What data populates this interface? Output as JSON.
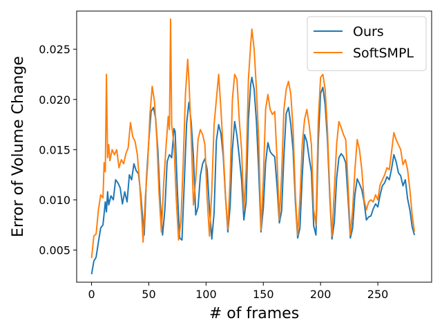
{
  "chart_data": {
    "type": "line",
    "xlabel": "# of frames",
    "ylabel": "Error of Volume Change",
    "xlim": [
      -13,
      297
    ],
    "ylim": [
      0.0018,
      0.0288
    ],
    "x_ticks": [
      0,
      50,
      100,
      150,
      200,
      250
    ],
    "x_tick_labels": [
      "0",
      "50",
      "100",
      "150",
      "200",
      "250"
    ],
    "y_ticks": [
      0.005,
      0.01,
      0.015,
      0.02,
      0.025
    ],
    "y_tick_labels": [
      "0.005",
      "0.010",
      "0.015",
      "0.020",
      "0.025"
    ],
    "grid": false,
    "legend_position": "top-right",
    "series": [
      {
        "name": "Ours",
        "color": "#1f77b4",
        "points": [
          [
            0,
            0.0026
          ],
          [
            2,
            0.0039
          ],
          [
            4,
            0.0043
          ],
          [
            6,
            0.0058
          ],
          [
            8,
            0.0072
          ],
          [
            10,
            0.0075
          ],
          [
            12,
            0.0098
          ],
          [
            13,
            0.0088
          ],
          [
            14,
            0.0108
          ],
          [
            15,
            0.0095
          ],
          [
            17,
            0.0104
          ],
          [
            19,
            0.01
          ],
          [
            21,
            0.012
          ],
          [
            23,
            0.0117
          ],
          [
            25,
            0.0112
          ],
          [
            27,
            0.0096
          ],
          [
            29,
            0.0108
          ],
          [
            31,
            0.0098
          ],
          [
            33,
            0.0125
          ],
          [
            35,
            0.012
          ],
          [
            37,
            0.0136
          ],
          [
            39,
            0.0129
          ],
          [
            41,
            0.0126
          ],
          [
            43,
            0.0105
          ],
          [
            45,
            0.0076
          ],
          [
            46,
            0.0065
          ],
          [
            48,
            0.0122
          ],
          [
            50,
            0.0159
          ],
          [
            52,
            0.0188
          ],
          [
            54,
            0.0192
          ],
          [
            56,
            0.0181
          ],
          [
            58,
            0.0148
          ],
          [
            60,
            0.0098
          ],
          [
            62,
            0.0065
          ],
          [
            64,
            0.009
          ],
          [
            66,
            0.0138
          ],
          [
            68,
            0.0145
          ],
          [
            70,
            0.0142
          ],
          [
            72,
            0.0171
          ],
          [
            73,
            0.0168
          ],
          [
            75,
            0.0108
          ],
          [
            77,
            0.0062
          ],
          [
            79,
            0.006
          ],
          [
            81,
            0.0118
          ],
          [
            83,
            0.0176
          ],
          [
            85,
            0.0197
          ],
          [
            87,
            0.0178
          ],
          [
            89,
            0.0143
          ],
          [
            91,
            0.0085
          ],
          [
            93,
            0.0093
          ],
          [
            95,
            0.0124
          ],
          [
            97,
            0.0136
          ],
          [
            99,
            0.0141
          ],
          [
            101,
            0.013
          ],
          [
            103,
            0.0091
          ],
          [
            105,
            0.0061
          ],
          [
            107,
            0.0087
          ],
          [
            109,
            0.0159
          ],
          [
            111,
            0.0175
          ],
          [
            113,
            0.0166
          ],
          [
            115,
            0.0144
          ],
          [
            117,
            0.0103
          ],
          [
            119,
            0.0068
          ],
          [
            121,
            0.0093
          ],
          [
            123,
            0.015
          ],
          [
            125,
            0.0178
          ],
          [
            127,
            0.0164
          ],
          [
            129,
            0.0143
          ],
          [
            131,
            0.012
          ],
          [
            133,
            0.008
          ],
          [
            135,
            0.0098
          ],
          [
            137,
            0.018
          ],
          [
            139,
            0.0215
          ],
          [
            140,
            0.0222
          ],
          [
            142,
            0.021
          ],
          [
            144,
            0.0178
          ],
          [
            146,
            0.0129
          ],
          [
            148,
            0.0068
          ],
          [
            150,
            0.0092
          ],
          [
            152,
            0.0137
          ],
          [
            154,
            0.0157
          ],
          [
            156,
            0.0148
          ],
          [
            158,
            0.0145
          ],
          [
            160,
            0.0143
          ],
          [
            162,
            0.0113
          ],
          [
            164,
            0.0077
          ],
          [
            166,
            0.0089
          ],
          [
            168,
            0.0144
          ],
          [
            170,
            0.0186
          ],
          [
            172,
            0.0192
          ],
          [
            174,
            0.0175
          ],
          [
            176,
            0.0149
          ],
          [
            178,
            0.0098
          ],
          [
            180,
            0.0062
          ],
          [
            182,
            0.0072
          ],
          [
            184,
            0.0123
          ],
          [
            186,
            0.0165
          ],
          [
            188,
            0.0158
          ],
          [
            190,
            0.0142
          ],
          [
            192,
            0.0128
          ],
          [
            194,
            0.0074
          ],
          [
            196,
            0.0065
          ],
          [
            198,
            0.0158
          ],
          [
            200,
            0.0206
          ],
          [
            202,
            0.0212
          ],
          [
            204,
            0.0195
          ],
          [
            206,
            0.016
          ],
          [
            208,
            0.0105
          ],
          [
            210,
            0.0061
          ],
          [
            212,
            0.0078
          ],
          [
            214,
            0.0121
          ],
          [
            216,
            0.0142
          ],
          [
            218,
            0.0146
          ],
          [
            220,
            0.0143
          ],
          [
            222,
            0.0137
          ],
          [
            224,
            0.0101
          ],
          [
            226,
            0.0062
          ],
          [
            228,
            0.0072
          ],
          [
            230,
            0.0105
          ],
          [
            232,
            0.0121
          ],
          [
            234,
            0.0116
          ],
          [
            236,
            0.011
          ],
          [
            238,
            0.0098
          ],
          [
            240,
            0.008
          ],
          [
            242,
            0.0083
          ],
          [
            244,
            0.0084
          ],
          [
            246,
            0.0091
          ],
          [
            248,
            0.0096
          ],
          [
            250,
            0.0093
          ],
          [
            252,
            0.0105
          ],
          [
            254,
            0.0114
          ],
          [
            256,
            0.0117
          ],
          [
            258,
            0.0123
          ],
          [
            260,
            0.012
          ],
          [
            262,
            0.0131
          ],
          [
            264,
            0.0145
          ],
          [
            266,
            0.0138
          ],
          [
            268,
            0.0127
          ],
          [
            270,
            0.0124
          ],
          [
            272,
            0.0114
          ],
          [
            274,
            0.012
          ],
          [
            276,
            0.0101
          ],
          [
            278,
            0.009
          ],
          [
            280,
            0.0073
          ],
          [
            282,
            0.0065
          ]
        ]
      },
      {
        "name": "SoftSMPL",
        "color": "#ff7f0e",
        "points": [
          [
            0,
            0.0042
          ],
          [
            2,
            0.0064
          ],
          [
            4,
            0.0066
          ],
          [
            6,
            0.009
          ],
          [
            8,
            0.0105
          ],
          [
            10,
            0.0102
          ],
          [
            11,
            0.0137
          ],
          [
            12,
            0.0128
          ],
          [
            13,
            0.0225
          ],
          [
            14,
            0.0142
          ],
          [
            15,
            0.0155
          ],
          [
            16,
            0.0139
          ],
          [
            18,
            0.015
          ],
          [
            20,
            0.0145
          ],
          [
            22,
            0.015
          ],
          [
            24,
            0.0132
          ],
          [
            26,
            0.014
          ],
          [
            28,
            0.0136
          ],
          [
            30,
            0.0146
          ],
          [
            32,
            0.0152
          ],
          [
            34,
            0.0177
          ],
          [
            36,
            0.0163
          ],
          [
            38,
            0.0158
          ],
          [
            40,
            0.0145
          ],
          [
            42,
            0.0116
          ],
          [
            44,
            0.008
          ],
          [
            45,
            0.0058
          ],
          [
            47,
            0.0103
          ],
          [
            49,
            0.0135
          ],
          [
            51,
            0.0185
          ],
          [
            53,
            0.0213
          ],
          [
            55,
            0.0198
          ],
          [
            57,
            0.016
          ],
          [
            59,
            0.0105
          ],
          [
            61,
            0.0068
          ],
          [
            63,
            0.0116
          ],
          [
            65,
            0.0152
          ],
          [
            67,
            0.0183
          ],
          [
            68,
            0.017
          ],
          [
            69,
            0.028
          ],
          [
            70,
            0.0175
          ],
          [
            72,
            0.0155
          ],
          [
            74,
            0.01
          ],
          [
            76,
            0.006
          ],
          [
            78,
            0.0078
          ],
          [
            80,
            0.0135
          ],
          [
            82,
            0.0205
          ],
          [
            84,
            0.024
          ],
          [
            85,
            0.022
          ],
          [
            87,
            0.0165
          ],
          [
            89,
            0.0095
          ],
          [
            91,
            0.012
          ],
          [
            93,
            0.016
          ],
          [
            95,
            0.017
          ],
          [
            97,
            0.0165
          ],
          [
            99,
            0.0155
          ],
          [
            101,
            0.0101
          ],
          [
            103,
            0.0064
          ],
          [
            105,
            0.011
          ],
          [
            107,
            0.0175
          ],
          [
            109,
            0.02
          ],
          [
            111,
            0.0225
          ],
          [
            113,
            0.019
          ],
          [
            115,
            0.015
          ],
          [
            117,
            0.0105
          ],
          [
            119,
            0.0071
          ],
          [
            121,
            0.012
          ],
          [
            123,
            0.02
          ],
          [
            125,
            0.0225
          ],
          [
            127,
            0.022
          ],
          [
            129,
            0.018
          ],
          [
            131,
            0.015
          ],
          [
            133,
            0.009
          ],
          [
            135,
            0.013
          ],
          [
            137,
            0.022
          ],
          [
            139,
            0.0255
          ],
          [
            140,
            0.027
          ],
          [
            142,
            0.025
          ],
          [
            144,
            0.021
          ],
          [
            146,
            0.016
          ],
          [
            148,
            0.007
          ],
          [
            150,
            0.012
          ],
          [
            152,
            0.019
          ],
          [
            154,
            0.0205
          ],
          [
            156,
            0.019
          ],
          [
            158,
            0.0185
          ],
          [
            160,
            0.0188
          ],
          [
            162,
            0.014
          ],
          [
            164,
            0.008
          ],
          [
            166,
            0.0125
          ],
          [
            168,
            0.019
          ],
          [
            170,
            0.021
          ],
          [
            172,
            0.0218
          ],
          [
            174,
            0.0205
          ],
          [
            176,
            0.017
          ],
          [
            178,
            0.0105
          ],
          [
            180,
            0.0065
          ],
          [
            182,
            0.01
          ],
          [
            184,
            0.0155
          ],
          [
            186,
            0.018
          ],
          [
            188,
            0.019
          ],
          [
            190,
            0.0175
          ],
          [
            192,
            0.0155
          ],
          [
            194,
            0.009
          ],
          [
            196,
            0.0075
          ],
          [
            198,
            0.018
          ],
          [
            200,
            0.0222
          ],
          [
            202,
            0.0225
          ],
          [
            204,
            0.021
          ],
          [
            206,
            0.017
          ],
          [
            208,
            0.011
          ],
          [
            210,
            0.0064
          ],
          [
            212,
            0.011
          ],
          [
            214,
            0.0155
          ],
          [
            216,
            0.0178
          ],
          [
            218,
            0.0172
          ],
          [
            220,
            0.0165
          ],
          [
            222,
            0.016
          ],
          [
            224,
            0.0115
          ],
          [
            226,
            0.0065
          ],
          [
            228,
            0.009
          ],
          [
            230,
            0.013
          ],
          [
            232,
            0.016
          ],
          [
            234,
            0.015
          ],
          [
            236,
            0.013
          ],
          [
            238,
            0.01
          ],
          [
            240,
            0.009
          ],
          [
            242,
            0.0098
          ],
          [
            244,
            0.01
          ],
          [
            246,
            0.0098
          ],
          [
            248,
            0.0105
          ],
          [
            250,
            0.01
          ],
          [
            252,
            0.0115
          ],
          [
            254,
            0.012
          ],
          [
            256,
            0.0125
          ],
          [
            258,
            0.0132
          ],
          [
            260,
            0.013
          ],
          [
            262,
            0.0148
          ],
          [
            264,
            0.0167
          ],
          [
            266,
            0.016
          ],
          [
            268,
            0.0155
          ],
          [
            270,
            0.015
          ],
          [
            272,
            0.0135
          ],
          [
            274,
            0.014
          ],
          [
            276,
            0.013
          ],
          [
            278,
            0.011
          ],
          [
            280,
            0.0085
          ],
          [
            282,
            0.0068
          ]
        ]
      }
    ]
  }
}
